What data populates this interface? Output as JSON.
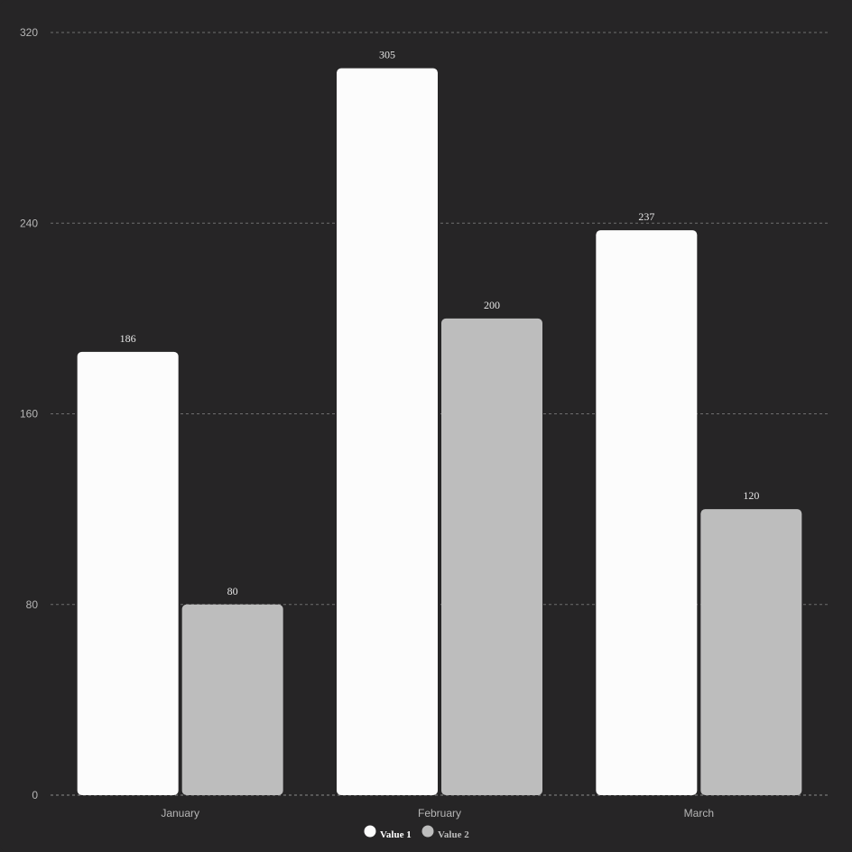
{
  "chart_data": {
    "type": "bar",
    "title": "",
    "xlabel": "",
    "ylabel": "",
    "categories": [
      "January",
      "February",
      "March"
    ],
    "series": [
      {
        "name": "Value 1",
        "values": [
          186,
          305,
          237
        ],
        "color": "#fcfcfc"
      },
      {
        "name": "Value 2",
        "values": [
          80,
          200,
          120
        ],
        "color": "#bdbdbd"
      }
    ],
    "ylim": [
      0,
      320
    ],
    "yticks": [
      0,
      80,
      160,
      240,
      320
    ],
    "grid": true,
    "legend_position": "bottom-center",
    "colors": {
      "background": "#262526",
      "grid": "#6e6e6e",
      "axis_text": "#b5b5b5",
      "value_label": "#e6e6e6"
    }
  }
}
